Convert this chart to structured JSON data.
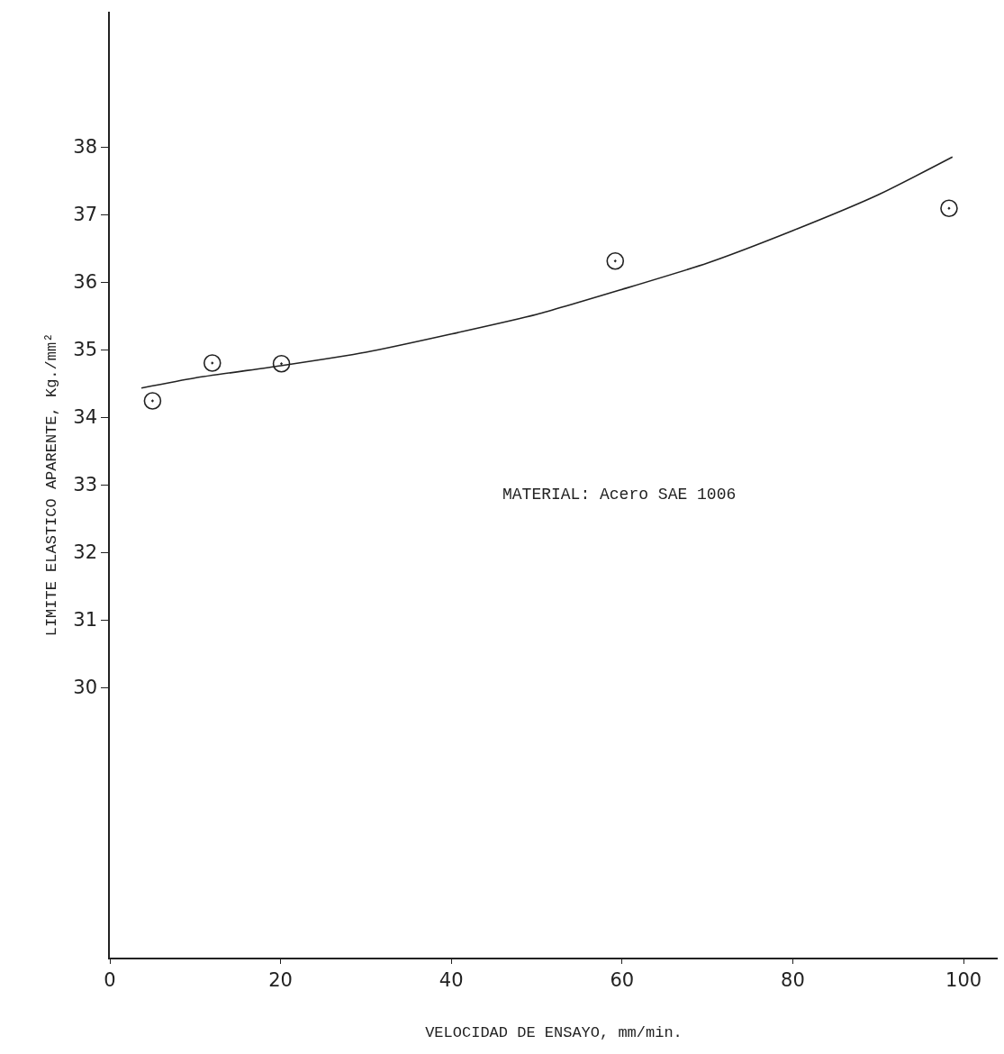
{
  "chart_data": {
    "type": "scatter",
    "xlabel": "VELOCIDAD DE ENSAYO, mm/min.",
    "ylabel": "LIMITE ELASTICO APARENTE, Kg./mm²",
    "annotations": [
      "MATERIAL: Acero SAE 1006"
    ],
    "xlim": [
      0,
      104
    ],
    "xticks": [
      0,
      20,
      40,
      60,
      80,
      100
    ],
    "ylim": [
      26,
      40
    ],
    "yticks": [
      30,
      31,
      32,
      33,
      34,
      35,
      36,
      37,
      38
    ],
    "grid": false,
    "series": [
      {
        "marker": "circle",
        "color": "#222222",
        "x": [
          5,
          12,
          20.1,
          59.2,
          98.3
        ],
        "values": [
          34.24,
          34.8,
          34.79,
          36.31,
          37.09
        ]
      },
      {
        "type": "line",
        "marker": "none",
        "line_style": "solid",
        "color": "#222222",
        "x": [
          3.7,
          10,
          20,
          30,
          40,
          50,
          60,
          70,
          80,
          90,
          98.7
        ],
        "values": [
          34.43,
          34.58,
          34.76,
          34.96,
          35.23,
          35.52,
          35.89,
          36.28,
          36.76,
          37.29,
          37.85
        ]
      }
    ]
  }
}
